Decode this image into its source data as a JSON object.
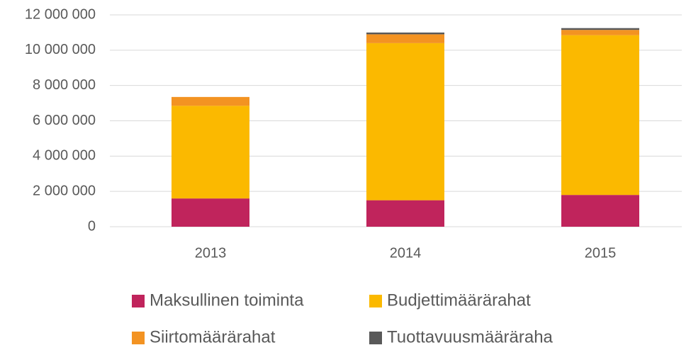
{
  "chart_data": {
    "type": "stacked_bar",
    "categories": [
      "2013",
      "2014",
      "2015"
    ],
    "series": [
      {
        "name": "Maksullinen toiminta",
        "color": "#c0245c",
        "values": [
          1600000,
          1500000,
          1800000
        ]
      },
      {
        "name": "Budjettimäärärahat",
        "color": "#fbb900",
        "values": [
          5250000,
          8900000,
          9050000
        ]
      },
      {
        "name": "Siirtomäärärahat",
        "color": "#f39322",
        "values": [
          500000,
          500000,
          300000
        ]
      },
      {
        "name": "Tuottavuusmääräraha",
        "color": "#595959",
        "values": [
          0,
          100000,
          100000
        ]
      }
    ],
    "ylim": [
      0,
      12000000
    ],
    "yticks": [
      0,
      {
        "value": 2000000,
        "label": "2 000 000"
      },
      {
        "value": 4000000,
        "label": "4 000 000"
      },
      {
        "value": 6000000,
        "label": "6 000 000"
      },
      {
        "value": 8000000,
        "label": "8 000 000"
      },
      {
        "value": 10000000,
        "label": "10 000 000"
      },
      {
        "value": 12000000,
        "label": "12 000 000"
      }
    ],
    "grid": true,
    "legend": "bottom"
  }
}
